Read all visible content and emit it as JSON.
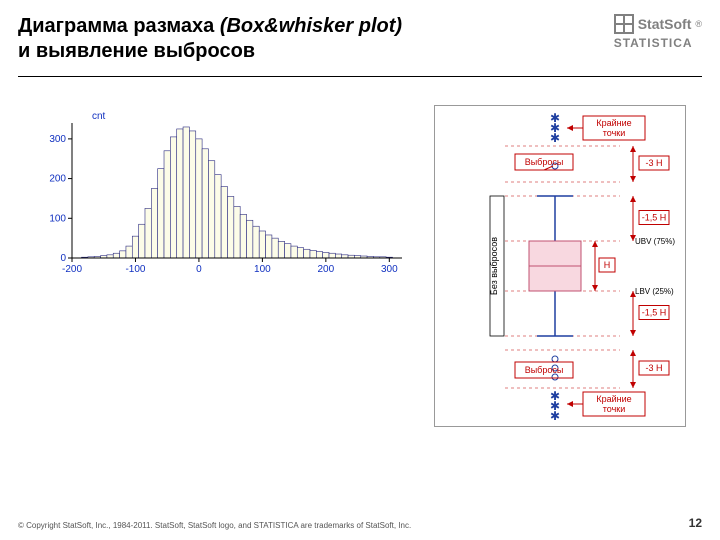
{
  "title": {
    "part1": "Диаграмма размаха ",
    "part2_italic": "(Box&whisker plot)",
    "line2": "и выявление выбросов"
  },
  "logo": {
    "brand": "StatSoft",
    "product": "STATISTICA",
    "reg": "®"
  },
  "histogram": {
    "type": "histogram",
    "y_axis_label": "cnt",
    "x_ticks": [
      -200,
      -100,
      0,
      100,
      200,
      300
    ],
    "y_ticks": [
      0,
      100,
      200,
      300
    ],
    "bar_centers": [
      -180,
      -170,
      -160,
      -150,
      -140,
      -130,
      -120,
      -110,
      -100,
      -90,
      -80,
      -70,
      -60,
      -50,
      -40,
      -30,
      -20,
      -10,
      0,
      10,
      20,
      30,
      40,
      50,
      60,
      70,
      80,
      90,
      100,
      110,
      120,
      130,
      140,
      150,
      160,
      170,
      180,
      190,
      200,
      210,
      220,
      230,
      240,
      250,
      260,
      270,
      280,
      290,
      300
    ],
    "bar_heights": [
      2,
      3,
      4,
      6,
      8,
      12,
      18,
      30,
      55,
      85,
      125,
      175,
      225,
      270,
      305,
      325,
      330,
      320,
      300,
      275,
      245,
      210,
      180,
      155,
      130,
      110,
      95,
      80,
      68,
      58,
      50,
      42,
      36,
      30,
      26,
      22,
      19,
      16,
      14,
      12,
      10,
      8,
      7,
      6,
      5,
      4,
      3,
      3,
      2
    ],
    "bar_fill": "#fcfce8",
    "bar_stroke": "#2a2a80",
    "axis_color": "#000000",
    "label_color": "#1030c0",
    "label_fontsize": 10,
    "xlim": [
      -200,
      320
    ],
    "ylim": [
      0,
      340
    ]
  },
  "box_diagram": {
    "type": "box-whisker-schematic",
    "labels": {
      "extreme": "Крайние точки",
      "outliers": "Выбросы",
      "no_outliers": "Без выбросов",
      "H": "H",
      "m3H": "-3 H",
      "m15H": "-1,5 H",
      "UBV": "UBV (75%)",
      "LBV": "LBV (25%)"
    },
    "colors": {
      "frame": "#c00000",
      "arrow": "#c00000",
      "whisker": "#1f3fa0",
      "box_fill": "#f8d8e0",
      "box_stroke": "#c05070",
      "median": "#c05070",
      "point": "#1f3fa0"
    }
  },
  "footer": {
    "copyright": "© Copyright StatSoft, Inc., 1984-2011. StatSoft, StatSoft logo, and STATISTICA are trademarks of StatSoft, Inc.",
    "page": "12"
  }
}
